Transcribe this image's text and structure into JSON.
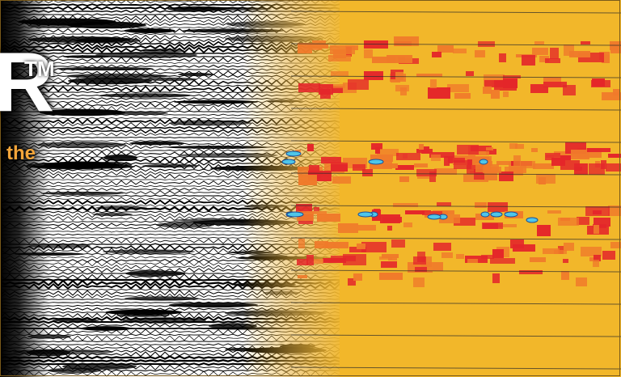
{
  "banner": {
    "title_fragment": "R",
    "trademark": "TM",
    "subtitle_fragment": "the"
  },
  "colors": {
    "background": "#000000",
    "wiggle_light": "#ffffff",
    "wiggle_dark": "#000000",
    "attribute_base": "#f2b72a",
    "attribute_orange": "#f07a2a",
    "attribute_red": "#e4262a",
    "attribute_cyan": "#4fc6e8",
    "subtitle_text": "#f3a53a",
    "title_text": "#ffffff"
  }
}
